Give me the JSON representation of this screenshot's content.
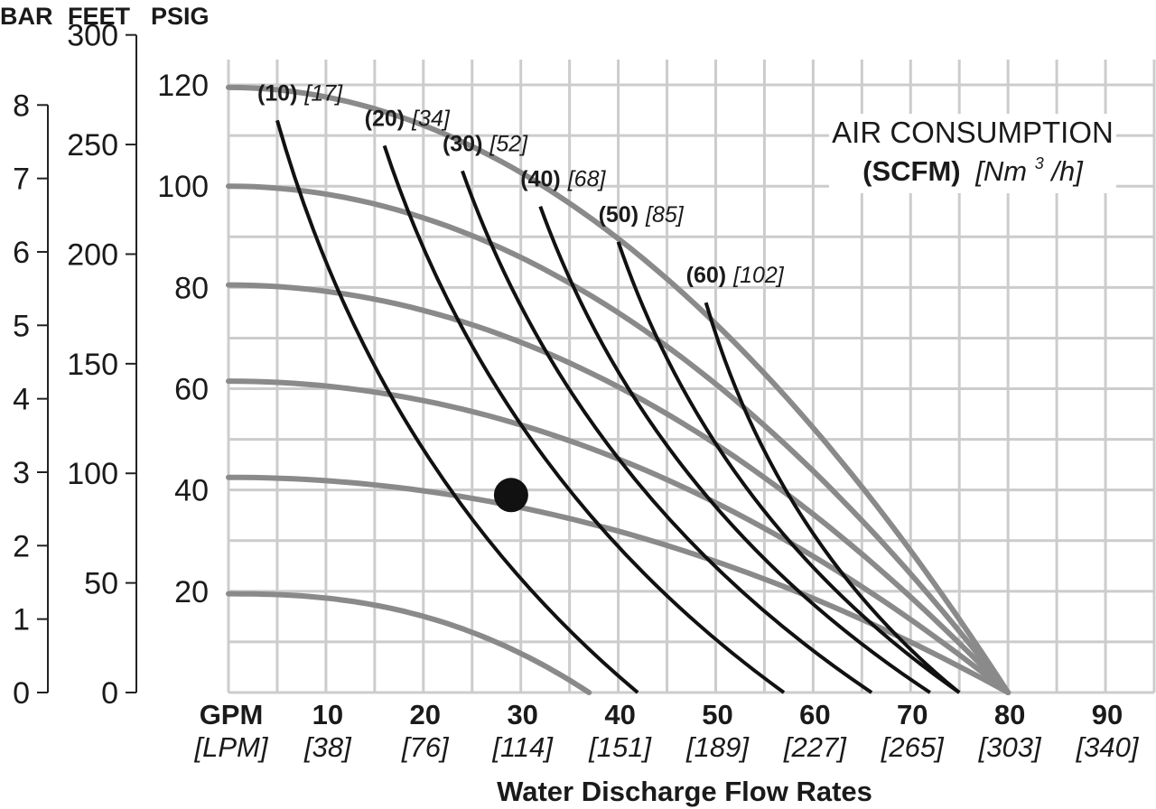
{
  "axis_headers": {
    "bar": "BAR",
    "feet": "FEET",
    "psig": "PSIG"
  },
  "colors": {
    "grid": "#cccccc",
    "head_curve": "#8a8a8a",
    "air_curve": "#111111",
    "point": "#111111"
  },
  "chart_data": {
    "type": "line",
    "title": "",
    "xlabel": "Water Discharge Flow Rates",
    "x_unit_primary": "GPM",
    "x_unit_secondary": "[LPM]",
    "xlim": [
      0,
      95
    ],
    "x_ticks": [
      {
        "gpm": "10",
        "lpm": "[38]"
      },
      {
        "gpm": "20",
        "lpm": "[76]"
      },
      {
        "gpm": "30",
        "lpm": "[114]"
      },
      {
        "gpm": "40",
        "lpm": "[151]"
      },
      {
        "gpm": "50",
        "lpm": "[189]"
      },
      {
        "gpm": "60",
        "lpm": "[227]"
      },
      {
        "gpm": "70",
        "lpm": "[265]"
      },
      {
        "gpm": "80",
        "lpm": "[303]"
      },
      {
        "gpm": "90",
        "lpm": "[340]"
      }
    ],
    "ylim_psig": [
      0,
      125
    ],
    "y_ticks_psig": [
      "20",
      "40",
      "60",
      "80",
      "100",
      "120"
    ],
    "y_ticks_feet": [
      "0",
      "50",
      "100",
      "150",
      "200",
      "250",
      "300"
    ],
    "y_ticks_bar": [
      "0",
      "1",
      "2",
      "3",
      "4",
      "5",
      "6",
      "7",
      "8"
    ],
    "grid": true,
    "air_consumption_legend": {
      "line1": "AIR CONSUMPTION",
      "bold": "(SCFM)",
      "italic_pre": "[Nm",
      "sup": "3",
      "italic_post": "/h]"
    },
    "pressure_curves_psig": [
      {
        "y0": 119.5,
        "x0_flow": 80
      },
      {
        "y0": 100,
        "x0_flow": 80
      },
      {
        "y0": 80.5,
        "x0_flow": 80
      },
      {
        "y0": 61.5,
        "x0_flow": 80
      },
      {
        "y0": 42.5,
        "x0_flow": 80
      },
      {
        "y0": 19.5,
        "x0_flow": 37
      }
    ],
    "air_consumption_curves": [
      {
        "label": "(10)",
        "metric": "[17]",
        "x_top": 5,
        "y_top": 113,
        "x_bottom": 42
      },
      {
        "label": "(20)",
        "metric": "[34]",
        "x_top": 16,
        "y_top": 108,
        "x_bottom": 57
      },
      {
        "label": "(30)",
        "metric": "[52]",
        "x_top": 24,
        "y_top": 103,
        "x_bottom": 66
      },
      {
        "label": "(40)",
        "metric": "[68]",
        "x_top": 32,
        "y_top": 96,
        "x_bottom": 72
      },
      {
        "label": "(50)",
        "metric": "[85]",
        "x_top": 40,
        "y_top": 89,
        "x_bottom": 75
      },
      {
        "label": "(60)",
        "metric": "[102]",
        "x_top": 49,
        "y_top": 77,
        "x_bottom": 75
      }
    ],
    "operating_point": {
      "x": 29,
      "y_psig": 39
    }
  }
}
